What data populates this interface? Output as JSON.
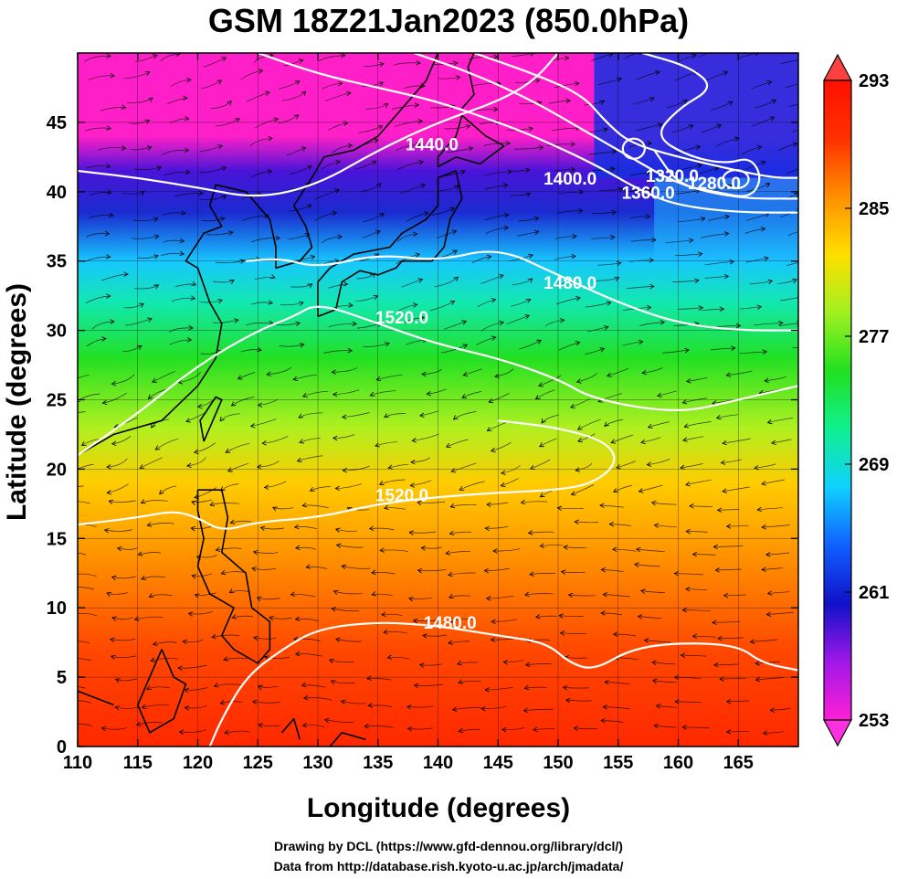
{
  "title": "GSM 18Z21Jan2023 (850.0hPa)",
  "xlabel": "Longitude (degrees)",
  "ylabel": "Latitude  (degrees)",
  "credits": [
    "Drawing by DCL (https://www.gfd-dennou.org/library/dcl/)",
    "Data from http://database.rish.kyoto-u.ac.jp/arch/jmadata/"
  ],
  "chart_data": {
    "type": "heatmap",
    "variable": "temperature",
    "x_ticks": [
      "110",
      "115",
      "120",
      "125",
      "130",
      "135",
      "140",
      "145",
      "150",
      "155",
      "160",
      "165"
    ],
    "y_ticks": [
      "0",
      "5",
      "10",
      "15",
      "20",
      "25",
      "30",
      "35",
      "40",
      "45"
    ],
    "xlim": [
      110,
      170
    ],
    "ylim": [
      0,
      50
    ],
    "colorbar": {
      "ticks": [
        "253",
        "261",
        "269",
        "277",
        "285",
        "293"
      ],
      "range": [
        253,
        293
      ],
      "colors": [
        "#ff1fd6",
        "#a018e8",
        "#1010c8",
        "#1060ff",
        "#10d0ff",
        "#10f090",
        "#20e020",
        "#a0f020",
        "#ffe000",
        "#ff9000",
        "#ff3000",
        "#ff1000"
      ]
    },
    "contour_labels": [
      {
        "text": "1440.0",
        "lon": 139.5,
        "lat": 43.0
      },
      {
        "text": "1400.0",
        "lon": 151.0,
        "lat": 40.5
      },
      {
        "text": "1360.0",
        "lon": 157.5,
        "lat": 39.5
      },
      {
        "text": "1320.0",
        "lon": 159.5,
        "lat": 40.7
      },
      {
        "text": "1280.0",
        "lon": 163.0,
        "lat": 40.2
      },
      {
        "text": "1480.0",
        "lon": 151.0,
        "lat": 33.0
      },
      {
        "text": "1520.0",
        "lon": 137.0,
        "lat": 30.5
      },
      {
        "text": "1520.0",
        "lon": 137.0,
        "lat": 17.7
      },
      {
        "text": "1480.0",
        "lon": 141.0,
        "lat": 8.5
      }
    ],
    "contours": [
      {
        "level": "1440.0",
        "points": [
          [
            110,
            41.5
          ],
          [
            115,
            41
          ],
          [
            120,
            40.3
          ],
          [
            125,
            39.5
          ],
          [
            130,
            40.5
          ],
          [
            135,
            43
          ],
          [
            140,
            45
          ],
          [
            145,
            46.5
          ],
          [
            148,
            48
          ],
          [
            150,
            50
          ]
        ]
      },
      {
        "level": "1400.0",
        "points": [
          [
            125,
            50
          ],
          [
            130,
            48.5
          ],
          [
            135,
            47.5
          ],
          [
            140,
            46.5
          ],
          [
            145,
            45
          ],
          [
            148,
            44
          ],
          [
            153,
            42
          ],
          [
            157,
            40
          ],
          [
            160,
            39
          ],
          [
            165,
            38.5
          ],
          [
            170,
            38.5
          ]
        ]
      },
      {
        "level": "1360.0",
        "points": [
          [
            138,
            50
          ],
          [
            143,
            48.5
          ],
          [
            148,
            46.5
          ],
          [
            152,
            44.5
          ],
          [
            156,
            42.5
          ],
          [
            160,
            40.5
          ],
          [
            165,
            39.5
          ],
          [
            170,
            39.5
          ]
        ]
      },
      {
        "level": "1320.0",
        "points": [
          [
            143,
            50
          ],
          [
            148,
            48.5
          ],
          [
            152,
            47
          ],
          [
            154,
            45
          ],
          [
            156,
            43.5
          ],
          [
            160,
            42.5
          ],
          [
            165,
            41.5
          ],
          [
            168,
            41
          ],
          [
            170,
            41
          ]
        ]
      },
      {
        "level": "1280.0",
        "points": [
          [
            157,
            50
          ],
          [
            161,
            49
          ],
          [
            163,
            47.5
          ],
          [
            160,
            46
          ],
          [
            158,
            44
          ],
          [
            161,
            42.5
          ],
          [
            164,
            42
          ],
          [
            166,
            42.5
          ],
          [
            167,
            41
          ],
          [
            166,
            39.5
          ],
          [
            163,
            40
          ],
          [
            160,
            40.5
          ],
          [
            158,
            43
          ]
        ]
      },
      {
        "level": "1480.0",
        "points": [
          [
            124,
            35
          ],
          [
            127,
            35.2
          ],
          [
            130,
            34.5
          ],
          [
            135,
            35.5
          ],
          [
            140,
            35
          ],
          [
            145,
            36
          ],
          [
            150,
            34
          ],
          [
            155,
            32
          ],
          [
            160,
            30.5
          ],
          [
            165,
            30
          ],
          [
            170,
            30
          ]
        ]
      },
      {
        "level": "1520.0",
        "points": [
          [
            110,
            21
          ],
          [
            115,
            24
          ],
          [
            120,
            27.5
          ],
          [
            125,
            30
          ],
          [
            128,
            31
          ],
          [
            130,
            32
          ],
          [
            135,
            30.5
          ],
          [
            140,
            29
          ],
          [
            145,
            28
          ],
          [
            150,
            26.5
          ],
          [
            153,
            25
          ],
          [
            160,
            24
          ],
          [
            165,
            25
          ],
          [
            170,
            26
          ]
        ]
      },
      {
        "level": "1520.0",
        "points": [
          [
            110,
            16
          ],
          [
            115,
            16.5
          ],
          [
            118,
            17
          ],
          [
            120,
            16.5
          ],
          [
            122,
            15.5
          ],
          [
            125,
            16.2
          ],
          [
            130,
            16.5
          ],
          [
            135,
            17.5
          ],
          [
            140,
            18
          ],
          [
            145,
            18.3
          ],
          [
            150,
            18.5
          ],
          [
            153,
            19
          ],
          [
            155,
            20.5
          ],
          [
            154,
            22
          ],
          [
            150,
            23
          ],
          [
            145,
            23.5
          ]
        ]
      },
      {
        "level": "1480.0",
        "points": [
          [
            121,
            0
          ],
          [
            122,
            2
          ],
          [
            124,
            5
          ],
          [
            127,
            7
          ],
          [
            130,
            8.5
          ],
          [
            135,
            9
          ],
          [
            140,
            8.7
          ],
          [
            145,
            8
          ],
          [
            149,
            7.5
          ],
          [
            151,
            6
          ],
          [
            153,
            5.5
          ],
          [
            156,
            7
          ],
          [
            160,
            7.5
          ],
          [
            165,
            7.3
          ],
          [
            167,
            6
          ],
          [
            170,
            5.5
          ]
        ]
      }
    ]
  }
}
